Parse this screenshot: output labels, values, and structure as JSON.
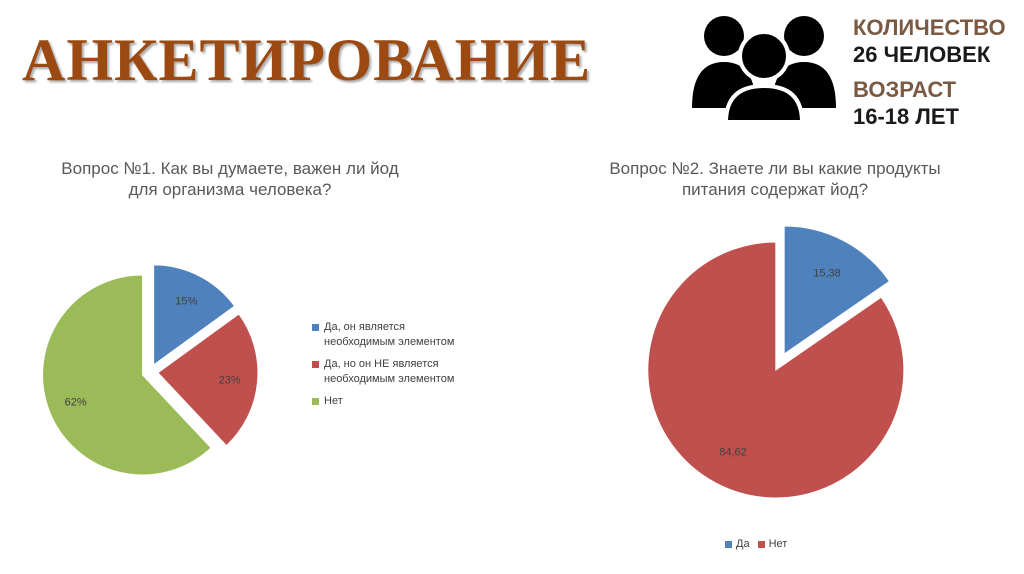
{
  "header": {
    "title": "АНКЕТИРОВАНИЕ",
    "count_label": "КОЛИЧЕСТВО",
    "count_value": "26 ЧЕЛОВЕК",
    "age_label": "ВОЗРАСТ",
    "age_value": "16-18 ЛЕТ",
    "icon": "people-group-icon"
  },
  "colors": {
    "title": "#9c4a12",
    "blue": "#4f81bd",
    "red": "#c0504d",
    "green": "#9bbb59"
  },
  "chart_data": [
    {
      "type": "pie",
      "title_lines": [
        "Вопрос №1. Как вы думаете, важен ли йод",
        "для организма человека?"
      ],
      "slices": [
        {
          "name": "Да, он является необходимым элементом",
          "legend_lines": [
            "Да, он является",
            "необходимым элементом"
          ],
          "value": 15,
          "label": "15%",
          "color": "#4f81bd"
        },
        {
          "name": "Да, но он НЕ является необходимым элементом",
          "legend_lines": [
            "Да, но он НЕ является",
            "необходимым элементом"
          ],
          "value": 23,
          "label": "23%",
          "color": "#c0504d"
        },
        {
          "name": "Нет",
          "legend_lines": [
            "Нет"
          ],
          "value": 62,
          "label": "62%",
          "color": "#9bbb59"
        }
      ],
      "exploded": true,
      "legend_position": "right"
    },
    {
      "type": "pie",
      "title_lines": [
        "Вопрос №2. Знаете ли вы какие продукты",
        "питания содержат йод?"
      ],
      "slices": [
        {
          "name": "Да",
          "value": 15.38,
          "label": "15,38",
          "color": "#4f81bd"
        },
        {
          "name": "Нет",
          "value": 84.62,
          "label": "84,62",
          "color": "#c0504d"
        }
      ],
      "exploded": true,
      "legend_position": "bottom"
    }
  ]
}
